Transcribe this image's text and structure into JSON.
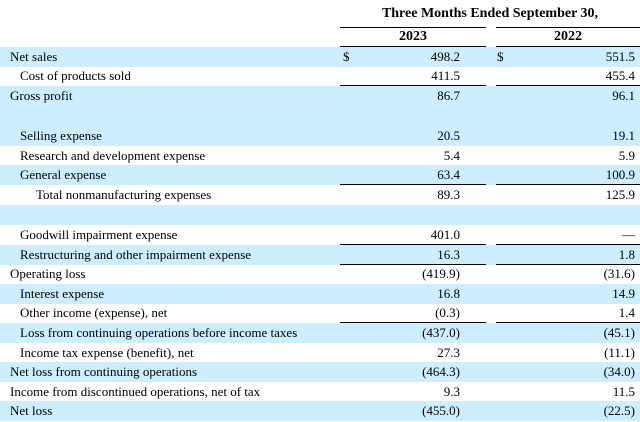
{
  "header": {
    "period": "Three Months Ended September 30,",
    "year_2023": "2023",
    "year_2022": "2022"
  },
  "currency_symbol": "$",
  "rows": [
    {
      "label": "Net sales",
      "v2023": "498.2",
      "v2022": "551.5"
    },
    {
      "label": "Cost of products sold",
      "v2023": "411.5",
      "v2022": "455.4"
    },
    {
      "label": "Gross profit",
      "v2023": "86.7",
      "v2022": "96.1"
    },
    {
      "label": "Selling expense",
      "v2023": "20.5",
      "v2022": "19.1"
    },
    {
      "label": "Research and development expense",
      "v2023": "5.4",
      "v2022": "5.9"
    },
    {
      "label": "General expense",
      "v2023": "63.4",
      "v2022": "100.9"
    },
    {
      "label": "Total nonmanufacturing expenses",
      "v2023": "89.3",
      "v2022": "125.9"
    },
    {
      "label": "Goodwill impairment expense",
      "v2023": "401.0",
      "v2022": "—"
    },
    {
      "label": "Restructuring and other impairment expense",
      "v2023": "16.3",
      "v2022": "1.8"
    },
    {
      "label": "Operating loss",
      "v2023": "(419.9)",
      "v2022": "(31.6)"
    },
    {
      "label": "Interest expense",
      "v2023": "16.8",
      "v2022": "14.9"
    },
    {
      "label": "Other income (expense), net",
      "v2023": "(0.3)",
      "v2022": "1.4"
    },
    {
      "label": "Loss from continuing operations before income taxes",
      "v2023": "(437.0)",
      "v2022": "(45.1)"
    },
    {
      "label": "Income tax expense (benefit), net",
      "v2023": "27.3",
      "v2022": "(11.1)"
    },
    {
      "label": "Net loss from continuing operations",
      "v2023": "(464.3)",
      "v2022": "(34.0)"
    },
    {
      "label": "Income from discontinued operations, net of tax",
      "v2023": "9.3",
      "v2022": "11.5"
    },
    {
      "label": "Net loss",
      "v2023": "(455.0)",
      "v2022": "(22.5)"
    }
  ]
}
